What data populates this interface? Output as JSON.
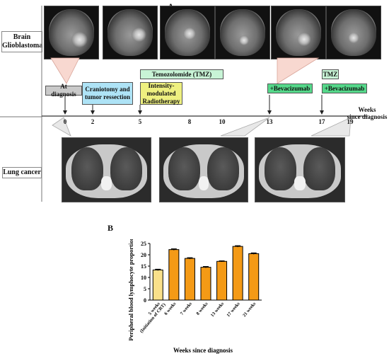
{
  "panel_a": {
    "label": "A",
    "brain_label": "Brain\nGlioblastoma",
    "lung_label": "Lung cancer",
    "boxes": {
      "at_diagnosis": "At diagnosis",
      "craniotomy": "Craniotomy and tumor ressection",
      "tmz": "Temozolomide (TMZ)",
      "imrt": "Intensity-modulated Radiotherapy",
      "bev1": "+Bevacizumab",
      "tmz2": "TMZ",
      "bev2": "+Bevacizumab"
    },
    "timeline_ticks": [
      "0",
      "2",
      "5",
      "8",
      "10",
      "13",
      "17",
      "19"
    ],
    "timeline_title": "Weeks\nsince diagnosis"
  },
  "panel_b": {
    "label": "B",
    "chart_data": {
      "type": "bar",
      "categories": [
        "5 weeks (Initiation of CRT)",
        "6 weeks",
        "7 weeks",
        "8 weeks",
        "13 weeks",
        "17 weeks",
        "21 weeks"
      ],
      "values": [
        13.3,
        22.3,
        18.4,
        14.5,
        17.1,
        23.7,
        20.5
      ],
      "errors": [
        0.3,
        0.3,
        0.3,
        0.3,
        0.2,
        0.3,
        0.3
      ],
      "bar_colors": [
        "#f9e08a",
        "#f49a16",
        "#f49a16",
        "#f49a16",
        "#f49a16",
        "#f49a16",
        "#f49a16"
      ],
      "ylabel": "Peripheral blood lymphocyte proportion (%)",
      "xlabel": "Weeks since diagnosis",
      "yticks": [
        "0",
        "5",
        "10",
        "15",
        "20",
        "25"
      ],
      "ylim": [
        0,
        25
      ],
      "grid": false
    }
  }
}
